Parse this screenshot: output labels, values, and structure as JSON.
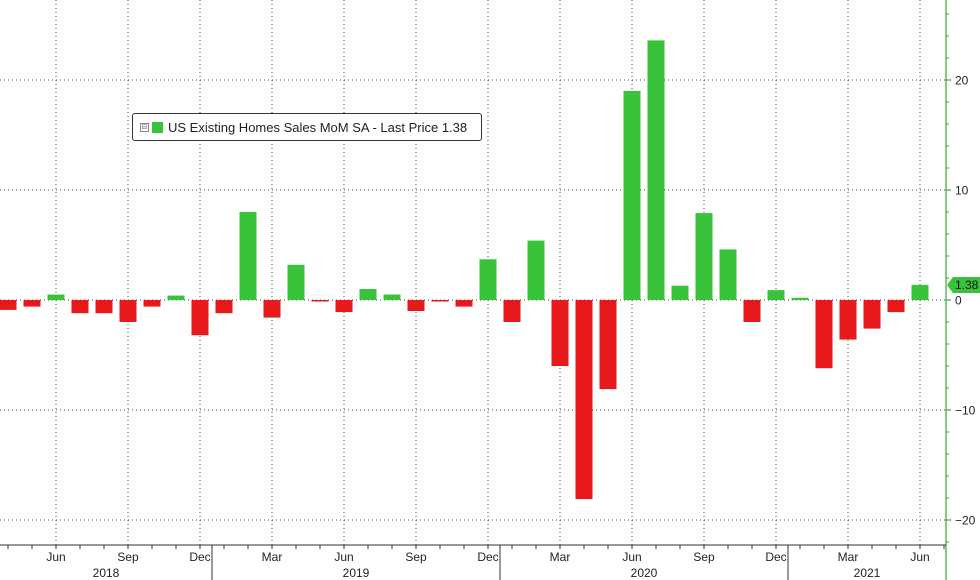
{
  "chart_data": {
    "type": "bar",
    "title": "",
    "xlabel": "",
    "ylabel": "",
    "ylim": [
      -23,
      27
    ],
    "yticks": [
      -20,
      -10,
      0,
      10,
      20
    ],
    "grid": true,
    "y_axis_position": "right",
    "legend_position": "top-left",
    "series": [
      {
        "name": "US Existing Homes Sales MoM SA - Last Price 1.38",
        "color_positive": "#38c33a",
        "color_negative": "#e8191b",
        "categories": [
          "2018-04",
          "2018-05",
          "2018-06",
          "2018-07",
          "2018-08",
          "2018-09",
          "2018-10",
          "2018-11",
          "2018-12",
          "2019-01",
          "2019-02",
          "2019-03",
          "2019-04",
          "2019-05",
          "2019-06",
          "2019-07",
          "2019-08",
          "2019-09",
          "2019-10",
          "2019-11",
          "2019-12",
          "2020-01",
          "2020-02",
          "2020-03",
          "2020-04",
          "2020-05",
          "2020-06",
          "2020-07",
          "2020-08",
          "2020-09",
          "2020-10",
          "2020-11",
          "2020-12",
          "2021-01",
          "2021-02",
          "2021-03",
          "2021-04",
          "2021-05",
          "2021-06"
        ],
        "values": [
          -0.9,
          -0.6,
          0.5,
          -1.2,
          -1.2,
          -2.0,
          -0.6,
          0.4,
          -3.2,
          -1.2,
          8.0,
          -1.6,
          3.2,
          -0.1,
          -1.1,
          1.0,
          0.5,
          -1.0,
          -0.1,
          -0.6,
          3.7,
          -2.0,
          5.4,
          -6.0,
          -18.1,
          -8.1,
          19.0,
          23.6,
          1.3,
          7.9,
          4.6,
          -2.0,
          0.9,
          0.2,
          -6.2,
          -3.6,
          -2.6,
          -1.1,
          1.38
        ]
      }
    ],
    "x_month_ticks": [
      {
        "label": "Jun",
        "month": "2018-06"
      },
      {
        "label": "Sep",
        "month": "2018-09"
      },
      {
        "label": "Dec",
        "month": "2018-12"
      },
      {
        "label": "Mar",
        "month": "2019-03"
      },
      {
        "label": "Jun",
        "month": "2019-06"
      },
      {
        "label": "Sep",
        "month": "2019-09"
      },
      {
        "label": "Dec",
        "month": "2019-12"
      },
      {
        "label": "Mar",
        "month": "2020-03"
      },
      {
        "label": "Jun",
        "month": "2020-06"
      },
      {
        "label": "Sep",
        "month": "2020-09"
      },
      {
        "label": "Dec",
        "month": "2020-12"
      },
      {
        "label": "Mar",
        "month": "2021-03"
      },
      {
        "label": "Jun",
        "month": "2021-06"
      }
    ],
    "x_year_labels": [
      "2018",
      "2019",
      "2020",
      "2021"
    ],
    "last_value_label": "1.38",
    "legend": {
      "text": "US Existing Homes Sales MoM SA - Last Price 1.38",
      "toggle": "⊟"
    }
  }
}
